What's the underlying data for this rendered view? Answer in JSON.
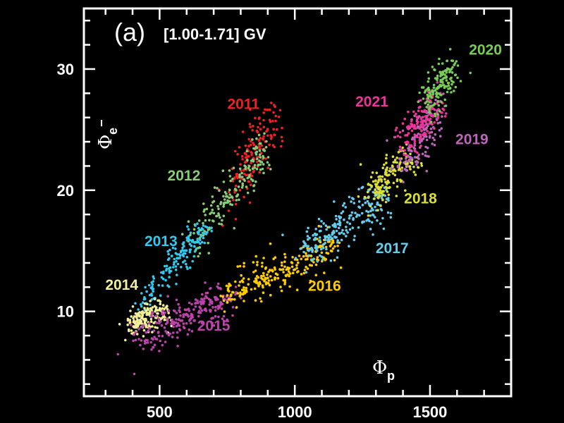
{
  "chart_data": {
    "type": "scatter",
    "panel_label": "(a)",
    "rigidity_range": "[1.00-1.71] GV",
    "xlabel": {
      "symbol": "Φ",
      "sub": "p"
    },
    "ylabel": {
      "symbol": "Φ",
      "sub": "e",
      "sup": "−"
    },
    "xlim": [
      220,
      1800
    ],
    "ylim": [
      3,
      35
    ],
    "xticks": [
      500,
      1000,
      1500
    ],
    "xtick_labels": [
      "500",
      "1000",
      "1500"
    ],
    "yticks": [
      10,
      20,
      30
    ],
    "ytick_labels": [
      "10",
      "20",
      "30"
    ],
    "grid": false,
    "series": [
      {
        "name": "2011",
        "color": "#ee2222",
        "label_pos": [
          810,
          26.7
        ],
        "path": [
          [
            770,
            19.5
          ],
          [
            800,
            21.5
          ],
          [
            830,
            22.5
          ],
          [
            860,
            23.5
          ],
          [
            890,
            24.5
          ],
          [
            930,
            26
          ]
        ],
        "spread": [
          30,
          1.0
        ],
        "count": 160
      },
      {
        "name": "2012",
        "color": "#88cc77",
        "label_pos": [
          590,
          20.8
        ],
        "path": [
          [
            620,
            15.5
          ],
          [
            680,
            17.5
          ],
          [
            740,
            19
          ],
          [
            800,
            20.5
          ],
          [
            850,
            22
          ],
          [
            880,
            23.5
          ]
        ],
        "spread": [
          22,
          0.7
        ],
        "count": 180
      },
      {
        "name": "2013",
        "color": "#33c8ee",
        "label_pos": [
          505,
          15.4
        ],
        "path": [
          [
            440,
            10
          ],
          [
            480,
            11.8
          ],
          [
            530,
            13.5
          ],
          [
            580,
            14.6
          ],
          [
            620,
            15.8
          ],
          [
            660,
            16.8
          ]
        ],
        "spread": [
          18,
          0.55
        ],
        "count": 160
      },
      {
        "name": "2014",
        "color": "#f2ee99",
        "label_pos": [
          360,
          11.8
        ],
        "path": [
          [
            390,
            8.6
          ],
          [
            420,
            9.2
          ],
          [
            450,
            9.6
          ],
          [
            480,
            9.8
          ],
          [
            510,
            9.9
          ]
        ],
        "spread": [
          20,
          0.55
        ],
        "count": 180
      },
      {
        "name": "2015",
        "color": "#bb44aa",
        "label_pos": [
          700,
          8.4
        ],
        "path": [
          [
            430,
            7.6
          ],
          [
            500,
            8.4
          ],
          [
            570,
            9.2
          ],
          [
            640,
            10.2
          ],
          [
            700,
            10.8
          ],
          [
            760,
            11.2
          ]
        ],
        "spread": [
          35,
          0.75
        ],
        "count": 240
      },
      {
        "name": "2016",
        "color": "#ffcc00",
        "label_pos": [
          1110,
          11.7
        ],
        "path": [
          [
            760,
            11
          ],
          [
            850,
            12.5
          ],
          [
            950,
            13.2
          ],
          [
            1050,
            14.3
          ],
          [
            1130,
            15.3
          ]
        ],
        "spread": [
          35,
          0.7
        ],
        "count": 240
      },
      {
        "name": "2017",
        "color": "#66ccee",
        "label_pos": [
          1360,
          14.8
        ],
        "path": [
          [
            1030,
            15
          ],
          [
            1120,
            16.2
          ],
          [
            1200,
            17.3
          ],
          [
            1270,
            18.5
          ],
          [
            1310,
            19.5
          ]
        ],
        "spread": [
          30,
          0.8
        ],
        "count": 220
      },
      {
        "name": "2018",
        "color": "#dde033",
        "label_pos": [
          1465,
          18.9
        ],
        "path": [
          [
            1280,
            19.5
          ],
          [
            1320,
            20.5
          ],
          [
            1360,
            21.3
          ],
          [
            1400,
            22.2
          ],
          [
            1440,
            23
          ]
        ],
        "spread": [
          22,
          0.8
        ],
        "count": 160
      },
      {
        "name": "2019",
        "color": "#bb66bb",
        "label_pos": [
          1655,
          23.8
        ],
        "path": [
          [
            1400,
            22.5
          ],
          [
            1440,
            23.5
          ],
          [
            1470,
            24.5
          ],
          [
            1500,
            25.5
          ],
          [
            1520,
            26.5
          ]
        ],
        "spread": [
          28,
          0.9
        ],
        "count": 140
      },
      {
        "name": "2021",
        "color": "#ee3399",
        "label_pos": [
          1285,
          26.9
        ],
        "path": [
          [
            1410,
            23.5
          ],
          [
            1440,
            24.8
          ],
          [
            1470,
            25.8
          ],
          [
            1500,
            26.5
          ],
          [
            1520,
            27.5
          ]
        ],
        "spread": [
          22,
          0.8
        ],
        "count": 150
      },
      {
        "name": "2020",
        "color": "#77cc55",
        "label_pos": [
          1705,
          31.2
        ],
        "path": [
          [
            1480,
            26.5
          ],
          [
            1510,
            27.7
          ],
          [
            1540,
            28.7
          ],
          [
            1560,
            29.5
          ],
          [
            1580,
            30.2
          ]
        ],
        "spread": [
          22,
          0.7
        ],
        "count": 150
      }
    ]
  }
}
